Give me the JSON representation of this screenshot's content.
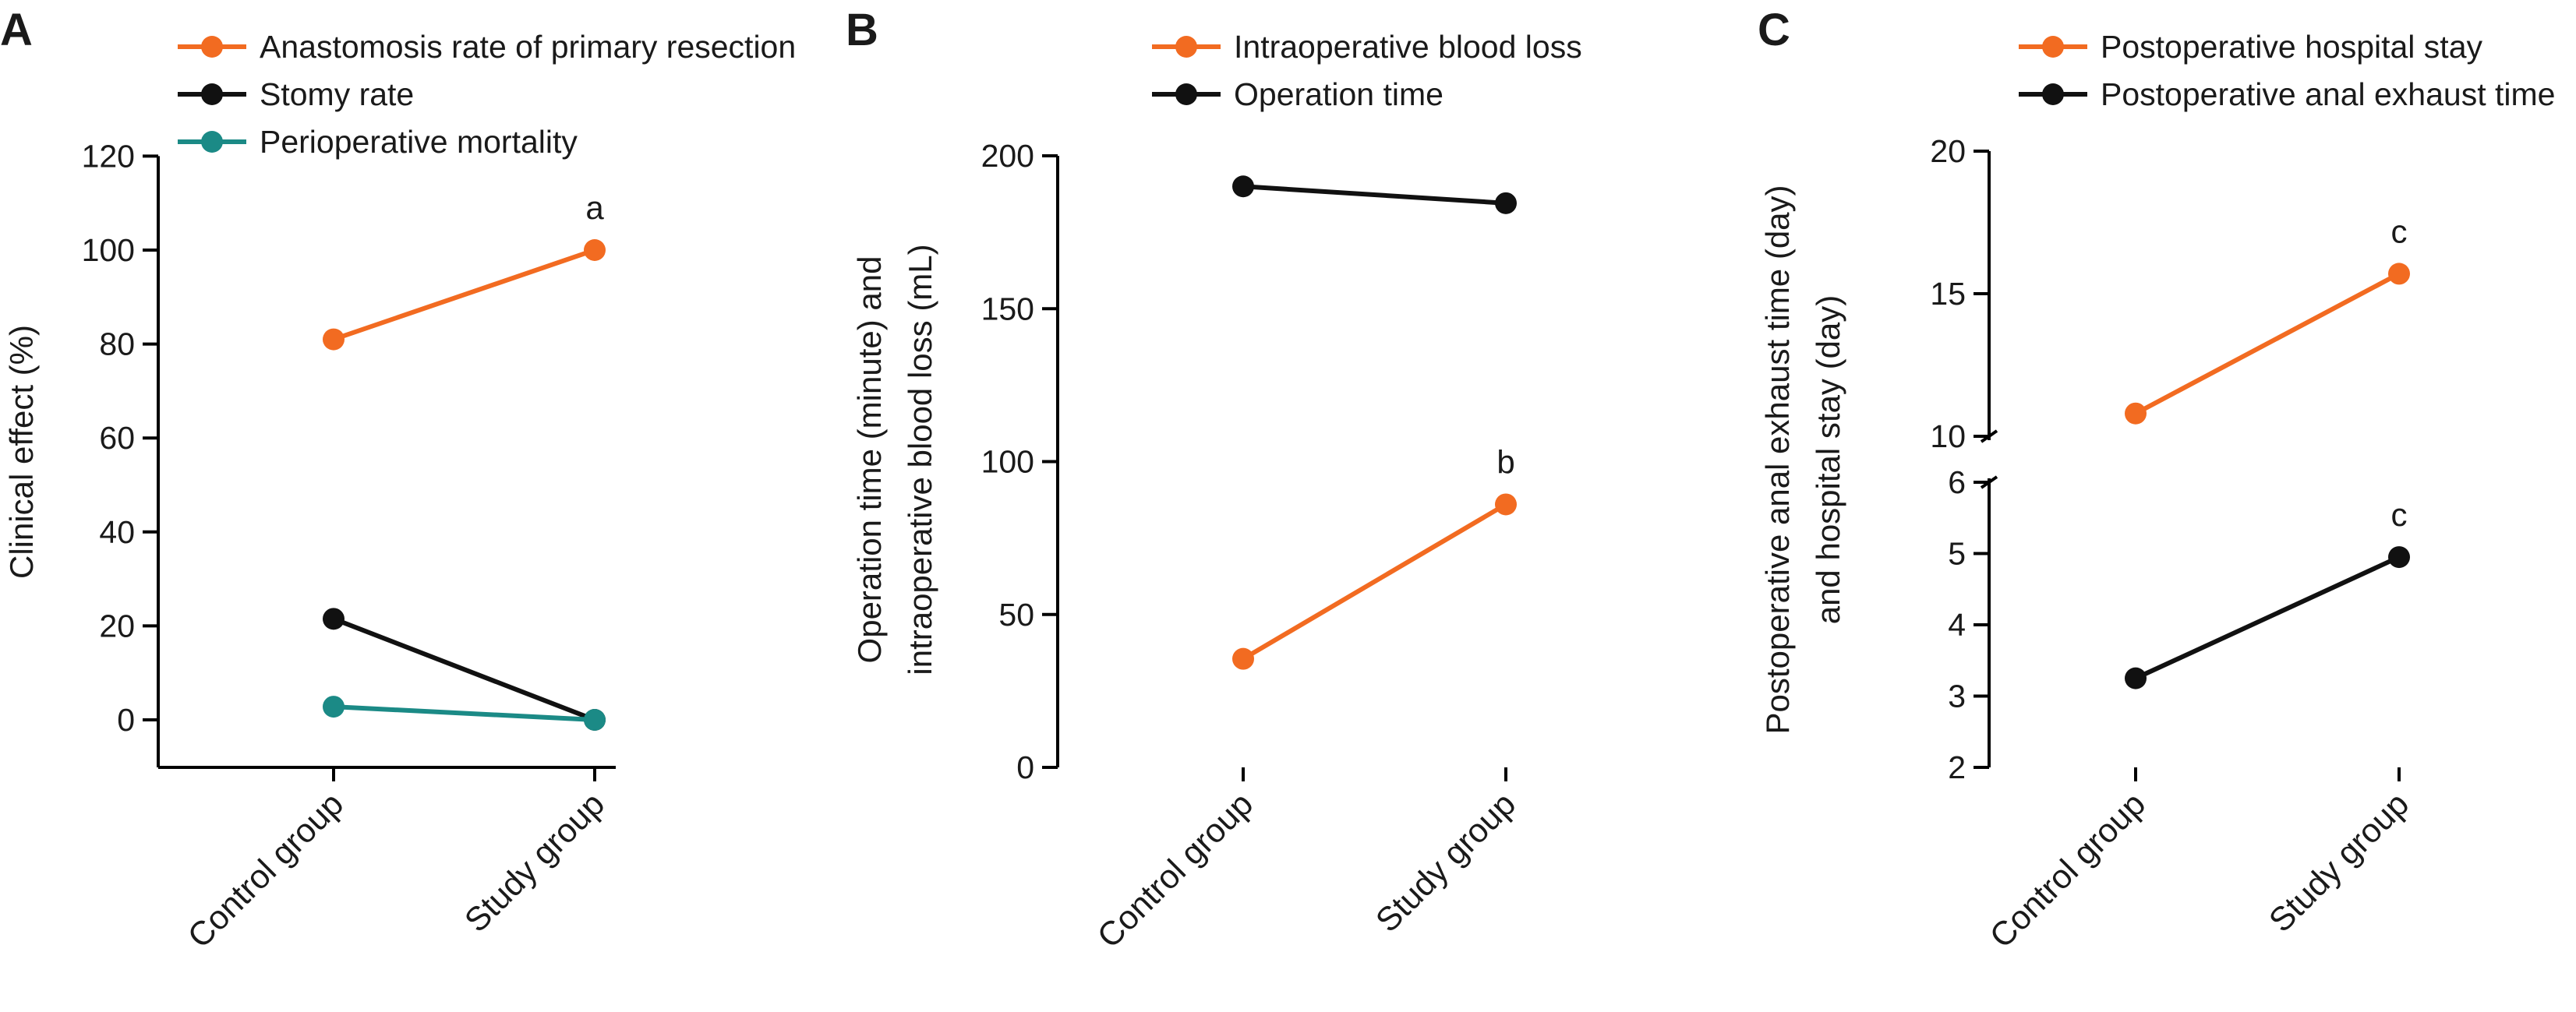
{
  "colors": {
    "orange": "#f26b21",
    "black": "#111111",
    "teal": "#1b8a86",
    "axis": "#000000"
  },
  "chart_data": [
    {
      "panel_label": "A",
      "type": "line",
      "categories": [
        "Control group",
        "Study group"
      ],
      "ylabel": "Clinical effect (%)",
      "xlabel": "",
      "ylim": [
        -10,
        120
      ],
      "yticks": [
        0,
        20,
        40,
        60,
        80,
        100,
        120
      ],
      "grid": false,
      "legend_position": "top",
      "series": [
        {
          "name": "Anastomosis rate of primary resection",
          "color": "orange",
          "values": [
            81,
            100
          ],
          "labels": [
            "",
            "a"
          ]
        },
        {
          "name": "Stomy rate",
          "color": "black",
          "values": [
            21.5,
            0
          ],
          "labels": [
            "",
            ""
          ]
        },
        {
          "name": "Perioperative mortality",
          "color": "teal",
          "values": [
            2.8,
            0
          ],
          "labels": [
            "",
            ""
          ]
        }
      ]
    },
    {
      "panel_label": "B",
      "type": "line",
      "categories": [
        "Control group",
        "Study group"
      ],
      "ylabel": "Operation time (minute) and intraoperative blood loss (mL)",
      "ylabel_lines": [
        "Operation time (minute) and",
        "intraoperative blood loss (mL)"
      ],
      "xlabel": "",
      "ylim": [
        0,
        200
      ],
      "yticks": [
        0,
        50,
        100,
        150,
        200
      ],
      "grid": false,
      "legend_position": "top",
      "series": [
        {
          "name": "Intraoperative blood loss",
          "color": "orange",
          "values": [
            35.5,
            86
          ],
          "labels": [
            "",
            "b"
          ]
        },
        {
          "name": "Operation time",
          "color": "black",
          "values": [
            190,
            184.5
          ],
          "labels": [
            "",
            ""
          ]
        }
      ]
    },
    {
      "panel_label": "C",
      "type": "line",
      "categories": [
        "Control group",
        "Study group"
      ],
      "ylabel": "Postoperative anal exhaust time (day) and hospital stay (day)",
      "ylabel_lines": [
        "Postoperative anal exhaust time (day)",
        "and hospital stay (day)"
      ],
      "xlabel": "",
      "ylim": [
        2,
        20
      ],
      "axis_break": {
        "lower_range": [
          2,
          6
        ],
        "upper_range": [
          10,
          20
        ]
      },
      "yticks": [
        2,
        3,
        4,
        5,
        6,
        10,
        15,
        20
      ],
      "grid": false,
      "legend_position": "top",
      "series": [
        {
          "name": "Postoperative hospital stay",
          "color": "orange",
          "values": [
            10.8,
            15.7
          ],
          "labels": [
            "",
            "c"
          ]
        },
        {
          "name": "Postoperative anal exhaust time",
          "color": "black",
          "values": [
            3.25,
            4.95
          ],
          "labels": [
            "",
            "c"
          ]
        }
      ]
    }
  ]
}
